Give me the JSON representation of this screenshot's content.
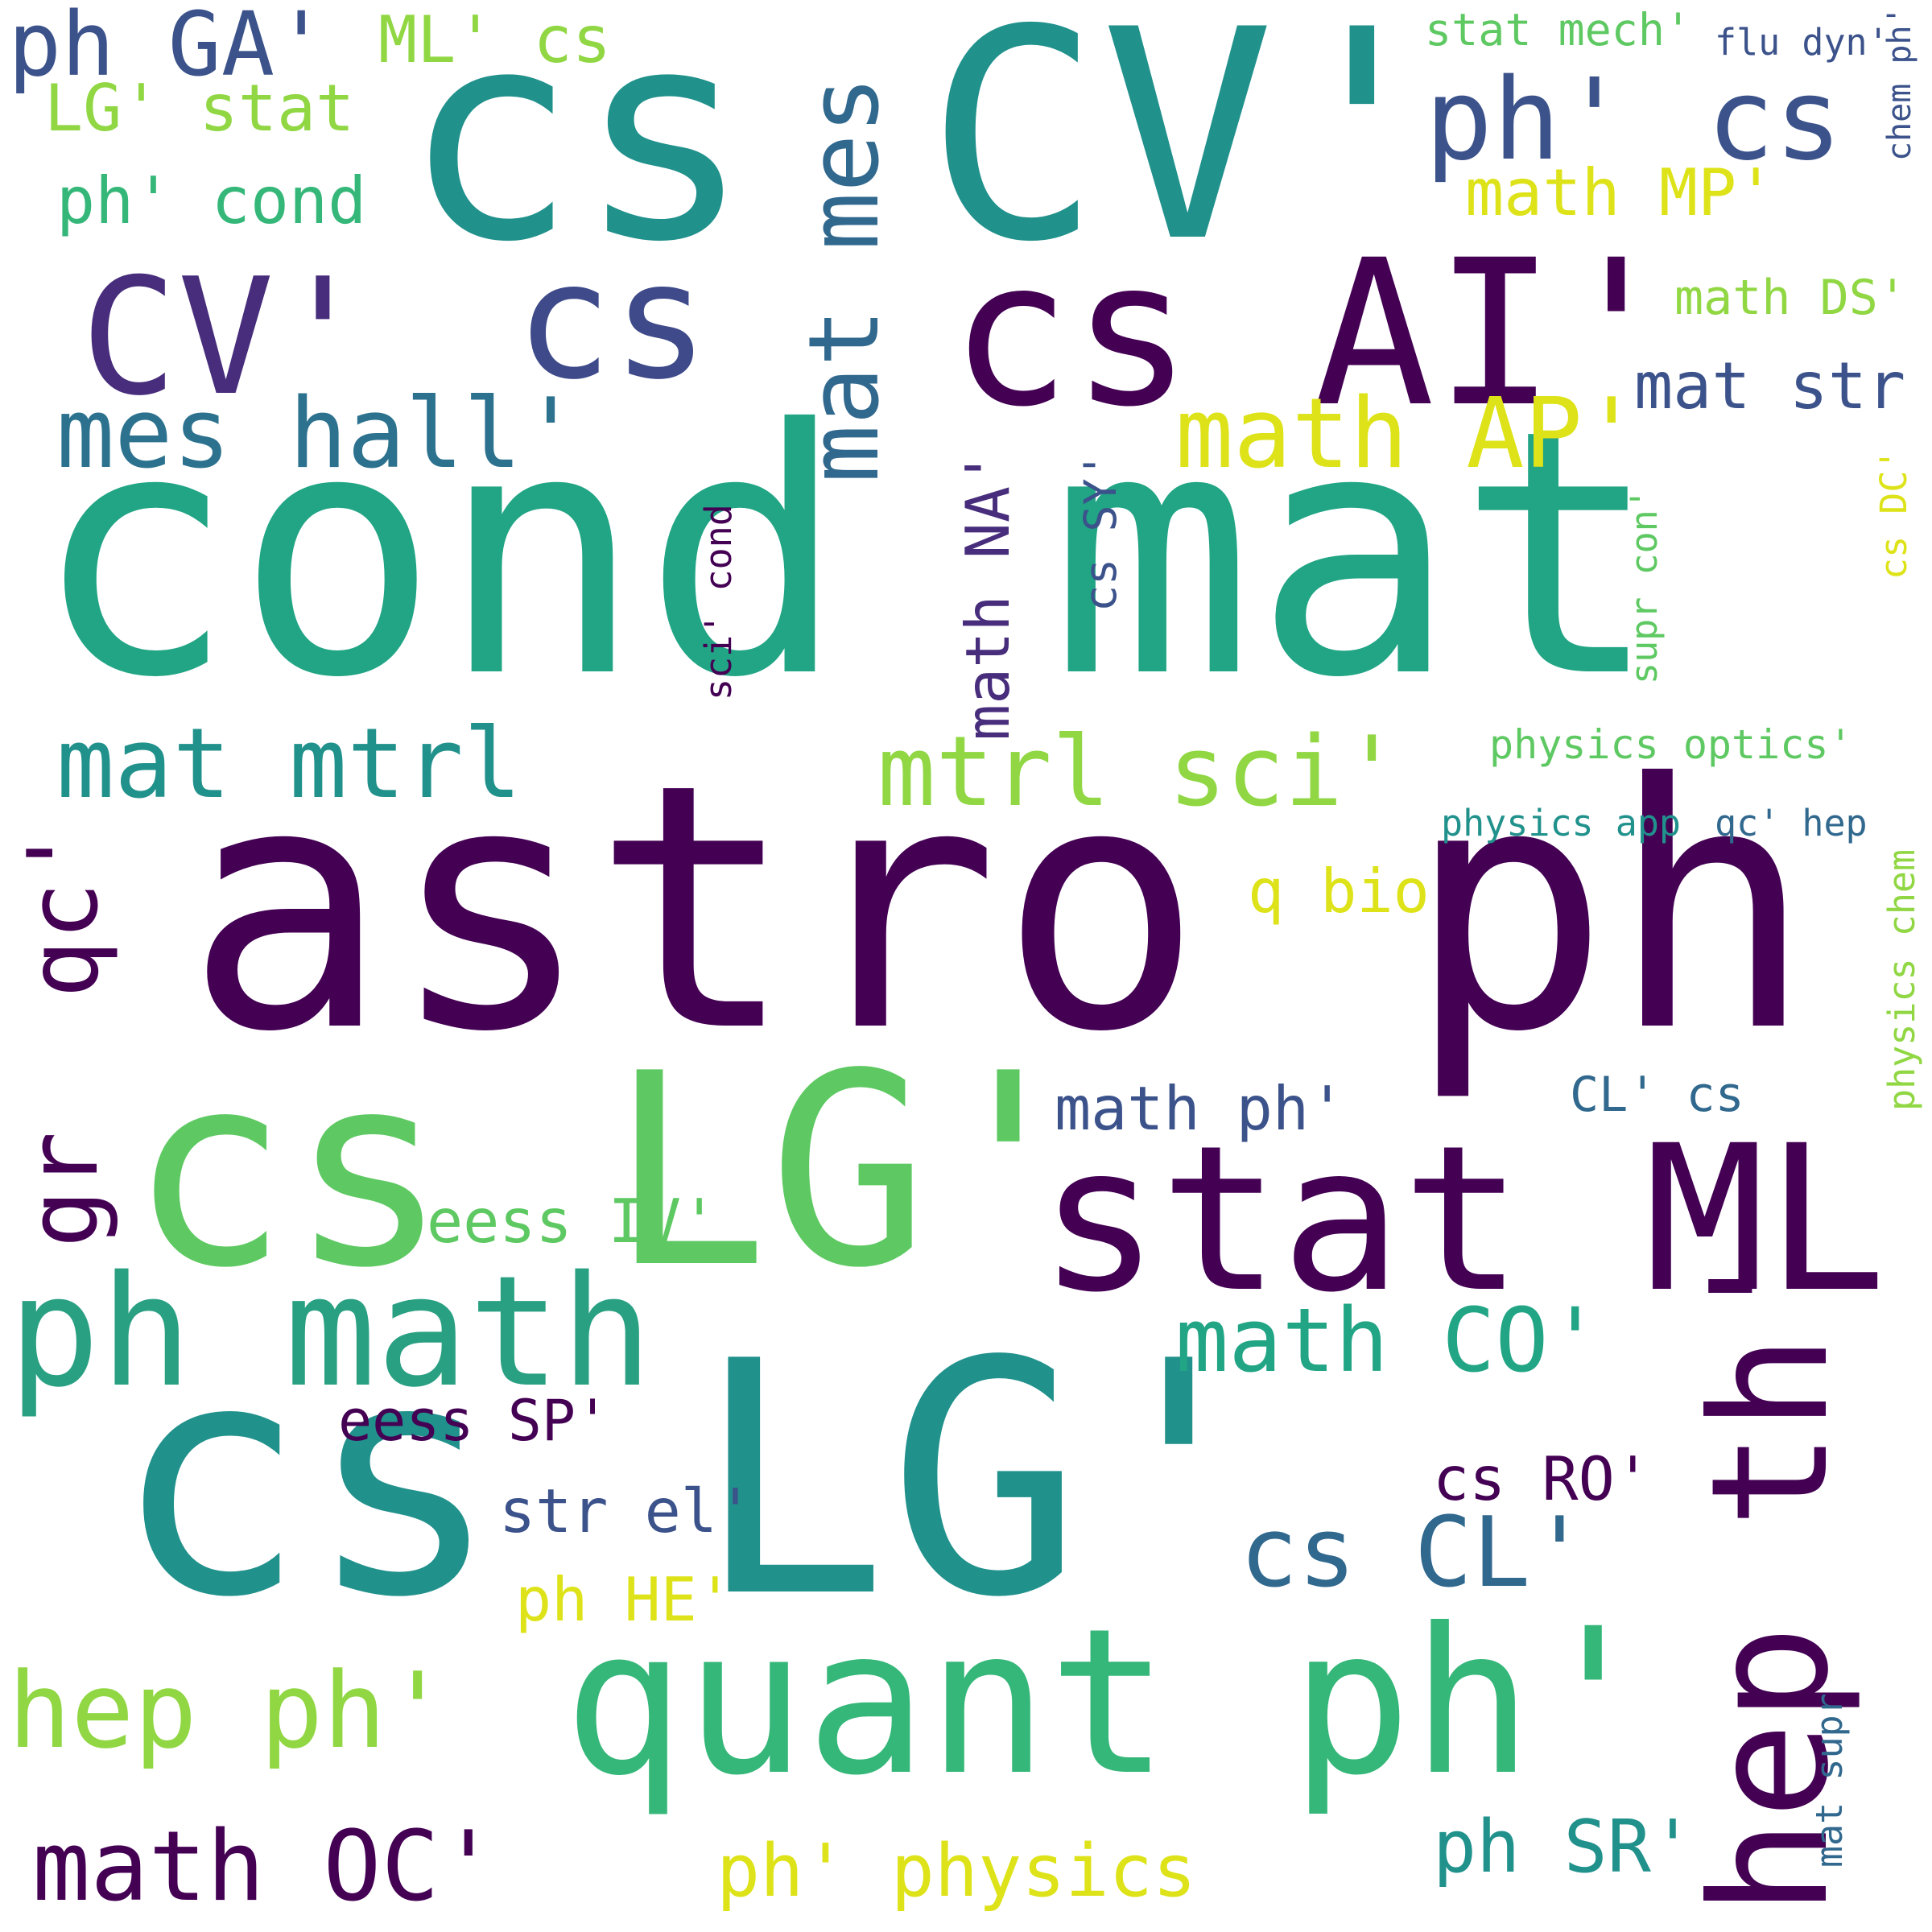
{
  "colors": {
    "background": "#ffffff",
    "dark_purple": "#440154",
    "indigo": "#3b528b",
    "blue": "#31688e",
    "teal": "#21918c",
    "green": "#35b779",
    "light_green": "#5ec962",
    "lime": "#90d743",
    "yellow": "#dde318"
  },
  "words": [
    "cond mat",
    "astro ph",
    "cs LG'",
    "cs CV'",
    "cs AI'",
    "hep th'",
    "stat ML'",
    "quant ph'",
    "ph math",
    "CV'",
    "mat mes",
    "mes hall'",
    "ph GA'",
    "ML' cs",
    "LG' stat",
    "ph' cond",
    "ph'",
    "cs",
    "math AP'",
    "mat mtrl",
    "mtrl sci'",
    "qc'",
    "gr",
    "hep ph'",
    "math OC'",
    "ph' physics",
    "ph SR'",
    "math CO'",
    "cs CL'",
    "mat str",
    "math MP'",
    "math DS'",
    "stat mech'",
    "flu dyn'",
    "chem ph'",
    "q bio",
    "eess IV'",
    "str el'",
    "ph HE'",
    "eess SP'",
    "cs RO'",
    "math ph'",
    "CL' cs",
    "physics optics'",
    "physics app",
    "qc' hep",
    "math NA'",
    "cs SY'",
    "sci' cond",
    "supr con'",
    "cs DC'",
    "physics chem",
    "mat supr"
  ]
}
